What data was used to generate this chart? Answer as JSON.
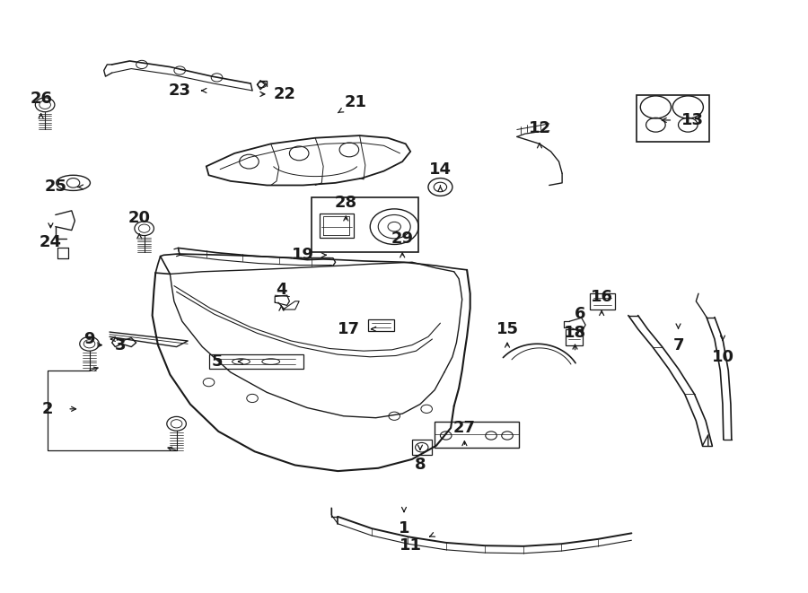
{
  "background_color": "#ffffff",
  "line_color": "#1a1a1a",
  "fig_width": 9.0,
  "fig_height": 6.61,
  "dpi": 100,
  "label_fontsize": 13,
  "label_fontweight": "bold",
  "labels": {
    "1": [
      0.5,
      0.108,
      0.5,
      0.13
    ],
    "2": [
      0.058,
      0.31,
      0.098,
      0.31
    ],
    "3": [
      0.148,
      0.418,
      0.13,
      0.418
    ],
    "4": [
      0.348,
      0.512,
      0.348,
      0.49
    ],
    "5": [
      0.268,
      0.39,
      0.29,
      0.39
    ],
    "6": [
      0.718,
      0.47,
      0.718,
      0.45
    ],
    "7": [
      0.84,
      0.418,
      0.84,
      0.44
    ],
    "8": [
      0.52,
      0.215,
      0.52,
      0.235
    ],
    "9": [
      0.11,
      0.428,
      0.135,
      0.428
    ],
    "10": [
      0.895,
      0.398,
      0.895,
      0.42
    ],
    "11": [
      0.508,
      0.08,
      0.528,
      0.092
    ],
    "12": [
      0.668,
      0.785,
      0.668,
      0.765
    ],
    "13": [
      0.858,
      0.798,
      0.815,
      0.798
    ],
    "14": [
      0.545,
      0.715,
      0.545,
      0.692
    ],
    "15": [
      0.628,
      0.445,
      0.628,
      0.428
    ],
    "16": [
      0.745,
      0.5,
      0.745,
      0.482
    ],
    "17": [
      0.432,
      0.445,
      0.455,
      0.445
    ],
    "18": [
      0.712,
      0.438,
      0.712,
      0.425
    ],
    "19": [
      0.375,
      0.57,
      0.408,
      0.57
    ],
    "20": [
      0.172,
      0.632,
      0.172,
      0.612
    ],
    "21": [
      0.44,
      0.828,
      0.415,
      0.808
    ],
    "22": [
      0.352,
      0.842,
      0.332,
      0.842
    ],
    "23": [
      0.222,
      0.848,
      0.248,
      0.848
    ],
    "24": [
      0.062,
      0.592,
      0.062,
      0.61
    ],
    "25": [
      0.068,
      0.685,
      0.092,
      0.685
    ],
    "26": [
      0.05,
      0.835,
      0.05,
      0.815
    ],
    "27": [
      0.575,
      0.278,
      0.575,
      0.262
    ],
    "28": [
      0.428,
      0.658,
      0.428,
      0.642
    ],
    "29": [
      0.498,
      0.598,
      0.498,
      0.58
    ]
  }
}
